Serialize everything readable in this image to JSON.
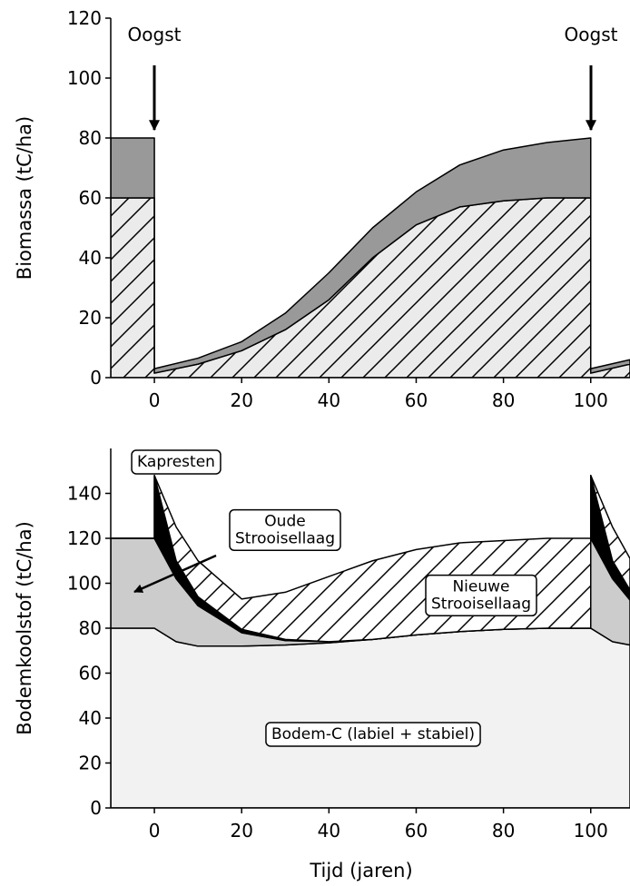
{
  "chart_data": [
    {
      "type": "area",
      "stacked": true,
      "ylabel": "Biomassa  (tC/ha)",
      "x": [
        -10,
        0,
        0,
        10,
        20,
        30,
        40,
        50,
        60,
        70,
        80,
        90,
        100,
        100,
        109
      ],
      "series": [
        {
          "color": "#ebebeb",
          "hatch": true,
          "values": [
            60,
            60,
            1.5,
            4.5,
            9,
            16,
            26,
            40,
            51,
            57,
            59,
            60,
            60,
            1.5,
            4.5
          ]
        },
        {
          "color": "#999999",
          "hatch": false,
          "values": [
            20,
            20,
            1.5,
            2,
            3,
            5.5,
            9,
            10,
            11,
            14,
            17,
            18.5,
            20,
            1.5,
            1.5
          ]
        }
      ],
      "xlim": [
        -10,
        109
      ],
      "ylim": [
        0,
        120
      ],
      "xticks": [
        0,
        20,
        40,
        60,
        80,
        100
      ],
      "yticks": [
        0,
        20,
        40,
        60,
        80,
        100,
        120
      ],
      "annotations": [
        {
          "text": "Oogst"
        },
        {
          "text": "Oogst"
        }
      ]
    },
    {
      "type": "area",
      "stacked": true,
      "ylabel": "Bodemkoolstof (tC/ha)",
      "xlabel": "Tijd (jaren)",
      "x": [
        -10,
        0,
        0,
        5,
        10,
        20,
        30,
        40,
        50,
        60,
        70,
        80,
        90,
        100,
        100,
        105,
        109
      ],
      "series": [
        {
          "color": "#f2f2f2",
          "hatch": false,
          "values": [
            80,
            80,
            80,
            74,
            72,
            72,
            72.5,
            73.5,
            75,
            77,
            78.5,
            79.5,
            80,
            80,
            80,
            74,
            72.5
          ]
        },
        {
          "color": "#cccccc",
          "hatch": false,
          "values": [
            40,
            40,
            40,
            28,
            18,
            6,
            2,
            0.5,
            0,
            0,
            0,
            0,
            0,
            0,
            40,
            28,
            20
          ]
        },
        {
          "color": "#000000",
          "hatch": false,
          "values": [
            0,
            0,
            28,
            8,
            4,
            1.5,
            0.5,
            0,
            0,
            0,
            0,
            0,
            0,
            0,
            28,
            8,
            4.5
          ]
        },
        {
          "color": "#ffffff",
          "hatch": true,
          "values": [
            0,
            0,
            0,
            15,
            16,
            13.5,
            21,
            29,
            35,
            38,
            39.5,
            39.5,
            40,
            40,
            0,
            15,
            14
          ]
        }
      ],
      "xlim": [
        -10,
        109
      ],
      "ylim": [
        0,
        160
      ],
      "xticks": [
        0,
        20,
        40,
        60,
        80,
        100
      ],
      "yticks": [
        0,
        20,
        40,
        60,
        80,
        100,
        120,
        140
      ],
      "annotations": [
        {
          "lines": [
            "Kapresten"
          ]
        },
        {
          "lines": [
            "Oude",
            "Strooisellaag"
          ]
        },
        {
          "lines": [
            "Nieuwe",
            "Strooisellaag"
          ]
        },
        {
          "lines": [
            "Bodem-C (labiel + stabiel)"
          ]
        }
      ]
    }
  ]
}
